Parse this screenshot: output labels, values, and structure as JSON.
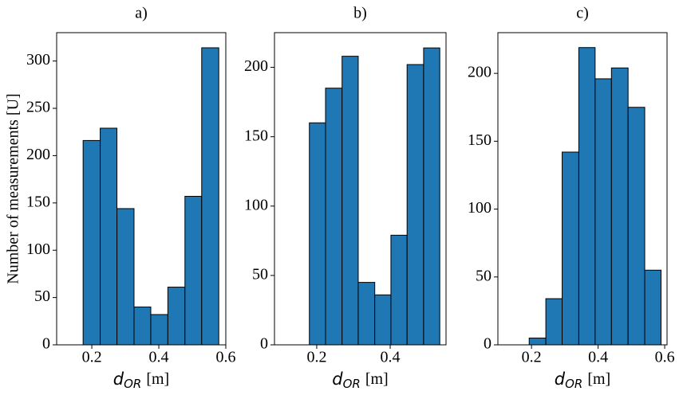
{
  "chart_data": [
    {
      "type": "histogram",
      "title": "a)",
      "ylabel": "Number of measurements [U]",
      "xlabel": {
        "symbol": "d",
        "subscript": "OR",
        "unit": "[m]"
      },
      "bins": [
        0.174,
        0.225,
        0.275,
        0.326,
        0.376,
        0.427,
        0.478,
        0.528,
        0.579
      ],
      "values": [
        216,
        229,
        144,
        40,
        32,
        61,
        157,
        314
      ],
      "color": "#1f77b4",
      "xlim": [
        0.095,
        0.6
      ],
      "ylim": [
        0,
        330
      ],
      "xticks": [
        0.2,
        0.4,
        0.6
      ],
      "yticks": [
        0,
        50,
        100,
        150,
        200,
        250,
        300
      ]
    },
    {
      "type": "histogram",
      "title": "b)",
      "xlabel": {
        "symbol": "d",
        "subscript": "OR",
        "unit": "[m]"
      },
      "bins": [
        0.18,
        0.224,
        0.269,
        0.313,
        0.358,
        0.402,
        0.446,
        0.491,
        0.535
      ],
      "values": [
        160,
        185,
        208,
        45,
        36,
        79,
        202,
        214
      ],
      "color": "#1f77b4",
      "xlim": [
        0.085,
        0.552
      ],
      "ylim": [
        0,
        225
      ],
      "xticks": [
        0.2,
        0.4
      ],
      "yticks": [
        0,
        50,
        100,
        150,
        200
      ]
    },
    {
      "type": "histogram",
      "title": "c)",
      "xlabel": {
        "symbol": "d",
        "subscript": "OR",
        "unit": "[m]"
      },
      "bins": [
        0.193,
        0.243,
        0.292,
        0.342,
        0.391,
        0.44,
        0.49,
        0.54,
        0.589
      ],
      "values": [
        5,
        34,
        142,
        219,
        196,
        204,
        175,
        55
      ],
      "color": "#1f77b4",
      "xlim": [
        0.099,
        0.607
      ],
      "ylim": [
        0,
        230
      ],
      "xticks": [
        0.2,
        0.4,
        0.6
      ],
      "yticks": [
        0,
        50,
        100,
        150,
        200
      ]
    }
  ]
}
